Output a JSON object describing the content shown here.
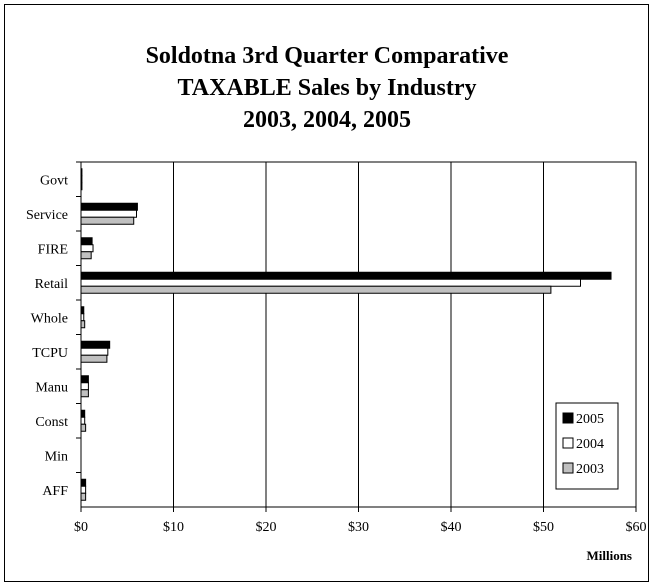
{
  "chart_data": {
    "type": "bar",
    "orientation": "horizontal",
    "title": [
      "Soldotna 3rd Quarter Comparative",
      "TAXABLE Sales by Industry",
      "2003, 2004, 2005"
    ],
    "xlabel": "Millions",
    "ylabel": "",
    "xlim": [
      0,
      60
    ],
    "x_ticks": [
      0,
      10,
      20,
      30,
      40,
      50,
      60
    ],
    "x_tick_labels": [
      "$0",
      "$10",
      "$20",
      "$30",
      "$40",
      "$50",
      "$60"
    ],
    "categories": [
      "Govt",
      "Service",
      "FIRE",
      "Retail",
      "Whole",
      "TCPU",
      "Manu",
      "Const",
      "Min",
      "AFF"
    ],
    "series": [
      {
        "name": "2005",
        "color": "#000000",
        "values": [
          0.1,
          6.1,
          1.2,
          57.3,
          0.3,
          3.1,
          0.8,
          0.4,
          0.0,
          0.5
        ]
      },
      {
        "name": "2004",
        "color": "#ffffff",
        "values": [
          0.1,
          6.0,
          1.3,
          54.0,
          0.3,
          2.9,
          0.8,
          0.4,
          0.0,
          0.5
        ]
      },
      {
        "name": "2003",
        "color": "#c0c0c0",
        "values": [
          0.1,
          5.7,
          1.1,
          50.8,
          0.4,
          2.8,
          0.8,
          0.5,
          0.0,
          0.5
        ]
      }
    ],
    "legend_position": "bottom-right",
    "grid": "vertical"
  }
}
